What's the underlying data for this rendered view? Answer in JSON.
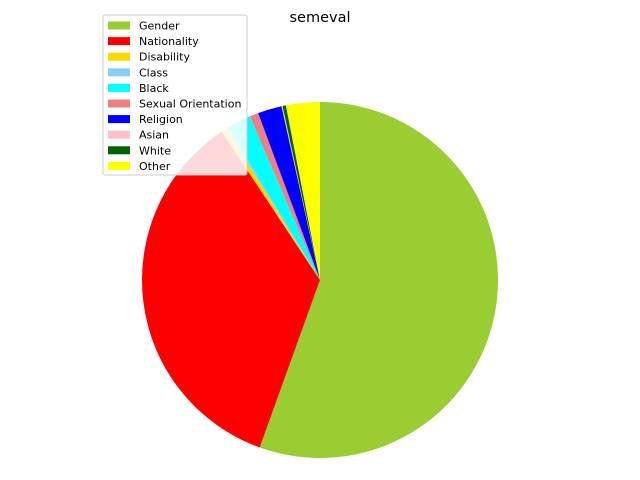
{
  "chart_data": {
    "type": "pie",
    "title": "semeval",
    "legend_placement": "top-left",
    "start_angle_deg": 90,
    "direction": "clockwise",
    "categories": [
      "Gender",
      "Nationality",
      "Disability",
      "Class",
      "Black",
      "Sexual Orientation",
      "Religion",
      "Asian",
      "White",
      "Other"
    ],
    "values": [
      56.0,
      35.5,
      0.5,
      0.2,
      2.2,
      0.8,
      2.2,
      0.1,
      0.3,
      3.1
    ],
    "colors": [
      "#9acd32",
      "#ff0000",
      "#ffd700",
      "#87cefa",
      "#00ffff",
      "#f08080",
      "#0000ff",
      "#ffc0cb",
      "#006400",
      "#ffff00"
    ]
  }
}
